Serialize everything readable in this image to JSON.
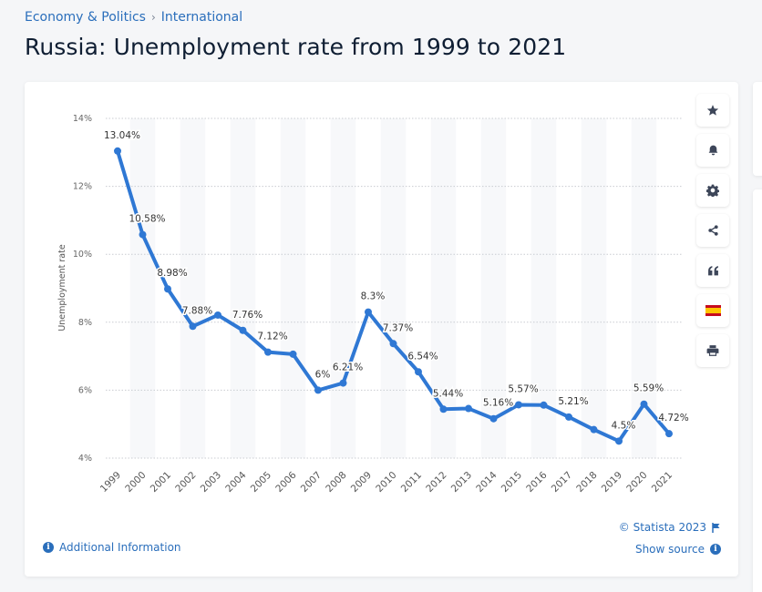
{
  "breadcrumb": {
    "items": [
      "Economy & Politics",
      "International"
    ],
    "separator": "›"
  },
  "page_title": "Russia: Unemployment rate from 1999 to 2021",
  "toolbar": [
    {
      "name": "favorite",
      "icon": "star-icon"
    },
    {
      "name": "notification",
      "icon": "bell-icon"
    },
    {
      "name": "settings",
      "icon": "gear-icon"
    },
    {
      "name": "share",
      "icon": "share-icon"
    },
    {
      "name": "cite",
      "icon": "quote-icon"
    },
    {
      "name": "language",
      "icon": "spain-flag-icon"
    },
    {
      "name": "print",
      "icon": "print-icon"
    }
  ],
  "footer": {
    "additional_info": "Additional Information",
    "copyright": "© Statista 2023",
    "show_source": "Show source"
  },
  "colors": {
    "line": "#2f78d4",
    "accent": "#2a6ebb",
    "band": "#f7f8fa"
  },
  "chart_data": {
    "type": "line",
    "title": "Russia: Unemployment rate from 1999 to 2021",
    "xlabel": "",
    "ylabel": "Unemployment rate",
    "categories": [
      "1999",
      "2000",
      "2001",
      "2002",
      "2003",
      "2004",
      "2005",
      "2006",
      "2007",
      "2008",
      "2009",
      "2010",
      "2011",
      "2012",
      "2013",
      "2014",
      "2015",
      "2016",
      "2017",
      "2018",
      "2019",
      "2020",
      "2021"
    ],
    "series": [
      {
        "name": "Unemployment rate",
        "values": [
          13.04,
          10.58,
          8.98,
          7.88,
          8.21,
          7.76,
          7.12,
          7.06,
          6.0,
          6.21,
          8.3,
          7.37,
          6.54,
          5.44,
          5.46,
          5.16,
          5.57,
          5.56,
          5.21,
          4.84,
          4.5,
          5.59,
          4.72
        ],
        "labels": [
          "13.04%",
          "10.58%",
          "8.98%",
          "7.88%",
          "",
          "7.76%",
          "7.12%",
          "",
          "6%",
          "6.21%",
          "8.3%",
          "7.37%",
          "6.54%",
          "5.44%",
          "",
          "5.16%",
          "5.57%",
          "",
          "5.21%",
          "",
          "4.5%",
          "5.59%",
          "4.72%"
        ]
      }
    ],
    "ylim": [
      4,
      14
    ],
    "yticks": [
      4,
      6,
      8,
      10,
      12,
      14
    ],
    "ytick_labels": [
      "4%",
      "6%",
      "8%",
      "10%",
      "12%",
      "14%"
    ],
    "grid": true,
    "legend": "none"
  }
}
